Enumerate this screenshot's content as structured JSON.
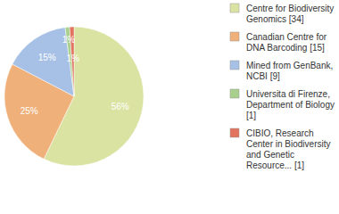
{
  "chart_data": {
    "type": "pie",
    "categories": [
      "Centre for Biodiversity Genomics [34]",
      "Canadian Centre for DNA Barcoding [15]",
      "Mined from GenBank, NCBI [9]",
      "Universita di Firenze, Department of Biology [1]",
      "CIBIO, Research Center in Biodiversity and Genetic Resource... [1]"
    ],
    "values": [
      56,
      25,
      15,
      1,
      1
    ],
    "value_labels": [
      "56%",
      "25%",
      "15%",
      "1%",
      "1%"
    ],
    "colors": [
      "#dbe3a2",
      "#f0b079",
      "#a7c1e6",
      "#a8cf8c",
      "#e2735e"
    ],
    "data_labels": true,
    "legend": "right"
  }
}
